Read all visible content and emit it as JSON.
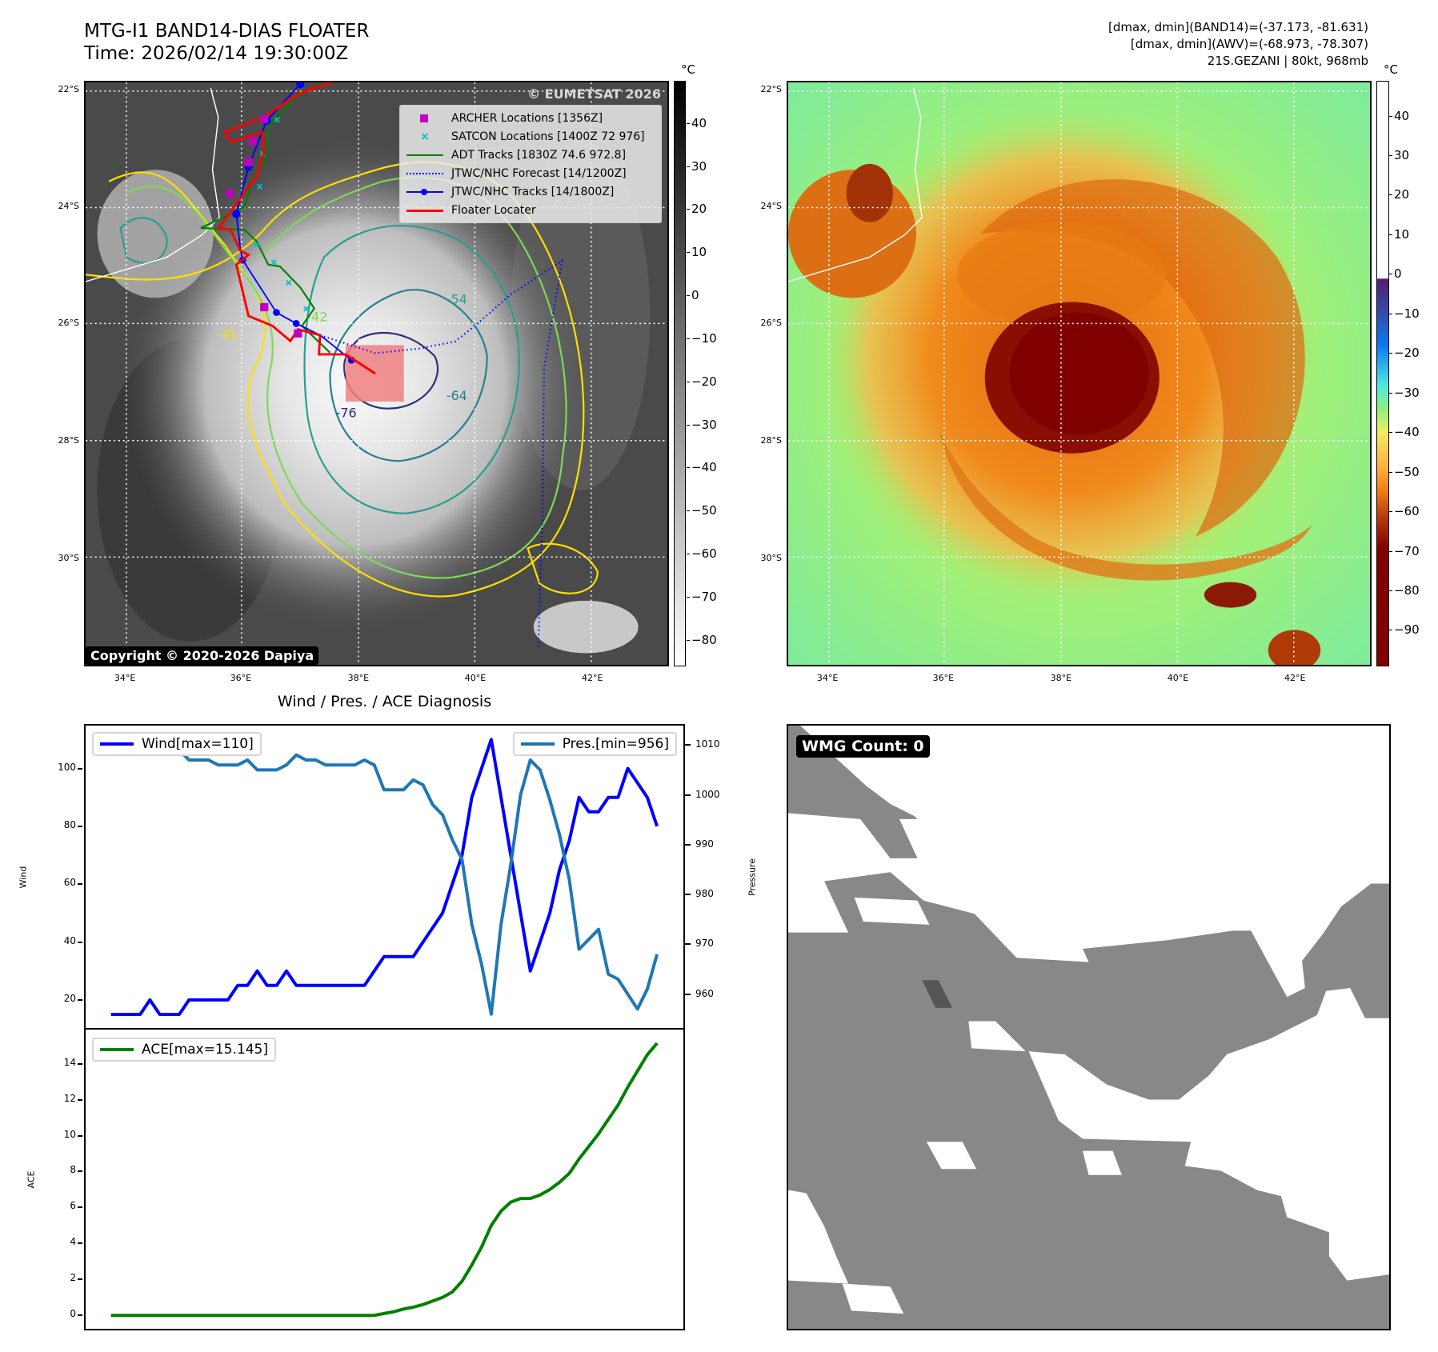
{
  "header": {
    "title_line1": "MTG-I1 BAND14-DIAS FLOATER",
    "title_line2": "Time: 2026/02/14 19:30:00Z",
    "stats_line1": "[dmax, dmin](BAND14)=(-37.173, -81.631)",
    "stats_line2": "[dmax, dmin](AWV)=(-68.973, -78.307)",
    "stats_line3": "21S.GEZANI | 80kt, 968mb"
  },
  "maps": {
    "lat_ticks": [
      "22°S",
      "24°S",
      "26°S",
      "28°S",
      "30°S"
    ],
    "lon_ticks": [
      "34°E",
      "36°E",
      "38°E",
      "40°E",
      "42°E"
    ],
    "contour_labels": [
      "-31",
      "-54",
      "-64",
      "-76",
      "-42"
    ],
    "left_colorbar": {
      "unit": "°C",
      "ticks": [
        "40",
        "30",
        "20",
        "10",
        "0",
        "−10",
        "−20",
        "−30",
        "−40",
        "−50",
        "−60",
        "−70",
        "−80"
      ]
    },
    "right_colorbar": {
      "unit": "°C",
      "ticks": [
        "40",
        "30",
        "20",
        "10",
        "0",
        "−10",
        "−20",
        "−30",
        "−40",
        "−50",
        "−60",
        "−70",
        "−80",
        "−90"
      ]
    },
    "watermark": "© EUMETSAT 2026",
    "copyright": "Copyright © 2020-2026 Dapiya",
    "legend": [
      {
        "label": "ARCHER Locations [1356Z]",
        "color": "#c000c0",
        "icon": "square-marker"
      },
      {
        "label": "SATCON Locations [1400Z 72 976]",
        "color": "#00c0c0",
        "icon": "x-marker"
      },
      {
        "label": "ADT Tracks [1830Z 74.6 972.8]",
        "color": "#008000",
        "icon": "solid-line"
      },
      {
        "label": "JTWC/NHC Forecast [14/1200Z]",
        "color": "#0000ff",
        "icon": "dotted-line"
      },
      {
        "label": "JTWC/NHC Tracks [14/1800Z]",
        "color": "#0000ff",
        "icon": "line-dot"
      },
      {
        "label": "Floater Locater",
        "color": "#ff0000",
        "icon": "solid-line"
      }
    ]
  },
  "wmg": {
    "label": "WMG Count: 0",
    "color": "#888888"
  },
  "chart_data": {
    "type": "line",
    "title": "Wind / Pres. / ACE Diagnosis",
    "panels": [
      {
        "ylabel": "Wind",
        "ylabel_right": "Pressure",
        "ylim": [
          10.3,
          114.8
        ],
        "ylim_right": [
          953.2,
          1013.9
        ],
        "yticks": [
          20,
          40,
          60,
          80,
          100
        ],
        "yticks_right": [
          960,
          970,
          980,
          990,
          1000,
          1010
        ],
        "series": [
          {
            "name": "Wind[max=110]",
            "axis": "left",
            "color": "#0000ff",
            "values": [
              15,
              15,
              15,
              15,
              20,
              15,
              15,
              15,
              20,
              20,
              20,
              20,
              20,
              25,
              25,
              30,
              25,
              25,
              30,
              25,
              25,
              25,
              25,
              25,
              25,
              25,
              25,
              30,
              35,
              35,
              35,
              35,
              40,
              45,
              50,
              60,
              70,
              90,
              100,
              110,
              90,
              70,
              50,
              30,
              40,
              50,
              65,
              75,
              90,
              85,
              85,
              90,
              90,
              100,
              95,
              90,
              80
            ]
          },
          {
            "name": "Pres.[min=956]",
            "axis": "right",
            "color": "#1f77b4",
            "values": [
              1009,
              1009,
              1011,
              1011,
              1011,
              1011,
              1011,
              1009,
              1007,
              1007,
              1007,
              1006,
              1006,
              1006,
              1007,
              1005,
              1005,
              1005,
              1006,
              1008,
              1007,
              1007,
              1006,
              1006,
              1006,
              1006,
              1007,
              1006,
              1001,
              1001,
              1001,
              1003,
              1002,
              998,
              996,
              991,
              987,
              974,
              966,
              956,
              974,
              986,
              1000,
              1007,
              1005,
              999,
              992,
              983,
              969,
              971,
              973,
              964,
              963,
              960,
              957,
              961,
              968
            ]
          }
        ]
      },
      {
        "ylabel": "ACE",
        "ylim": [
          -0.75,
          15.9
        ],
        "yticks": [
          0,
          2,
          4,
          6,
          8,
          10,
          12,
          14
        ],
        "series": [
          {
            "name": "ACE[max=15.145]",
            "axis": "left",
            "color": "#008000",
            "values": [
              0,
              0,
              0,
              0,
              0,
              0,
              0,
              0,
              0,
              0,
              0,
              0,
              0,
              0,
              0,
              0,
              0,
              0,
              0,
              0,
              0,
              0,
              0,
              0,
              0,
              0,
              0,
              0,
              0.1,
              0.2,
              0.35,
              0.45,
              0.6,
              0.8,
              1.0,
              1.3,
              1.9,
              2.8,
              3.8,
              5.0,
              5.8,
              6.3,
              6.5,
              6.5,
              6.7,
              7.0,
              7.4,
              7.9,
              8.7,
              9.4,
              10.1,
              10.9,
              11.7,
              12.7,
              13.6,
              14.5,
              15.145
            ]
          }
        ]
      }
    ],
    "xlim": [
      -2.6,
      58.7
    ]
  }
}
